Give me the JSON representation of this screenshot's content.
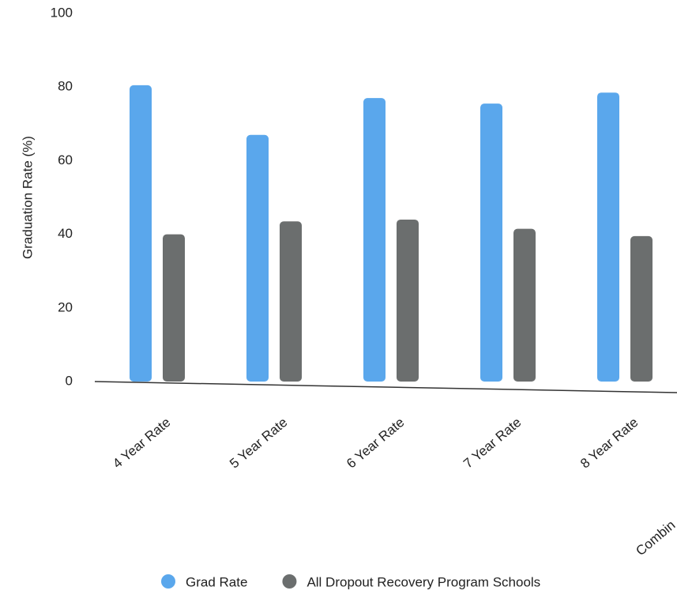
{
  "chart_data": {
    "type": "bar",
    "y_label": "Graduation Rate (%)",
    "categories": [
      "4 Year Rate",
      "5 Year Rate",
      "6 Year Rate",
      "7 Year Rate",
      "8 Year Rate",
      "Combin"
    ],
    "series": [
      {
        "name": "Grad Rate",
        "color": "#5aa7ec",
        "values": [
          80.5,
          67,
          77,
          75.5,
          78.5,
          null
        ]
      },
      {
        "name": "All Dropout Recovery Program Schools",
        "color": "#6b6e6e",
        "values": [
          40,
          43.5,
          44,
          41.5,
          39.5,
          null
        ]
      }
    ],
    "ylim": [
      0,
      100
    ],
    "yticks": [
      0,
      20,
      40,
      60,
      80,
      100
    ],
    "grid": false,
    "legend": "bottom"
  }
}
